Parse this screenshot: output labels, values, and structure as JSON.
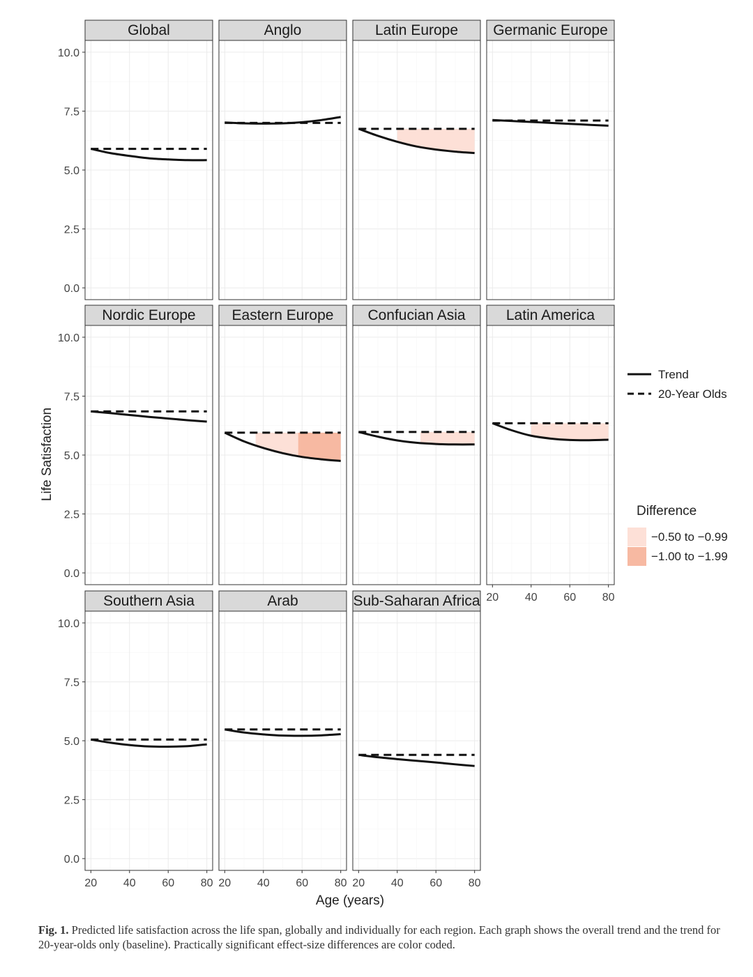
{
  "chart_data": {
    "type": "line",
    "ylabel": "Life Satisfaction",
    "xlabel": "Age (years)",
    "x_ticks": [
      20,
      40,
      60,
      80
    ],
    "y_ticks": [
      "0.0",
      "2.5",
      "5.0",
      "7.5",
      "10.0"
    ],
    "xlim": [
      17,
      83
    ],
    "ylim": [
      -0.5,
      10.5
    ],
    "legend": {
      "lines": [
        {
          "label": "Trend",
          "style": "solid"
        },
        {
          "label": "20-Year Olds",
          "style": "dashed"
        }
      ],
      "difference_title": "Difference",
      "fills": [
        {
          "label": "−0.50 to −0.99",
          "color": "#fde0d7"
        },
        {
          "label": "−1.00 to −1.99",
          "color": "#f7b9a2"
        }
      ]
    },
    "panels": [
      {
        "title": "Global",
        "baseline": 5.9,
        "trend": {
          "x": [
            20,
            30,
            40,
            50,
            60,
            70,
            80
          ],
          "y": [
            5.9,
            5.72,
            5.6,
            5.5,
            5.45,
            5.42,
            5.42
          ]
        },
        "shading": []
      },
      {
        "title": "Anglo",
        "baseline": 7.0,
        "trend": {
          "x": [
            20,
            30,
            40,
            50,
            60,
            70,
            80
          ],
          "y": [
            7.02,
            6.98,
            6.97,
            6.98,
            7.03,
            7.12,
            7.25
          ]
        },
        "shading": []
      },
      {
        "title": "Latin Europe",
        "baseline": 6.75,
        "trend": {
          "x": [
            20,
            30,
            40,
            50,
            60,
            70,
            80
          ],
          "y": [
            6.75,
            6.45,
            6.2,
            6.0,
            5.87,
            5.78,
            5.72
          ]
        },
        "shading": [
          {
            "from": 40,
            "to": 80,
            "level": 0
          }
        ]
      },
      {
        "title": "Germanic Europe",
        "baseline": 7.1,
        "trend": {
          "x": [
            20,
            30,
            40,
            50,
            60,
            70,
            80
          ],
          "y": [
            7.12,
            7.08,
            7.04,
            7.0,
            6.96,
            6.92,
            6.88
          ]
        },
        "shading": []
      },
      {
        "title": "Nordic Europe",
        "baseline": 6.85,
        "trend": {
          "x": [
            20,
            30,
            40,
            50,
            60,
            70,
            80
          ],
          "y": [
            6.85,
            6.78,
            6.7,
            6.62,
            6.55,
            6.48,
            6.42
          ]
        },
        "shading": []
      },
      {
        "title": "Eastern Europe",
        "baseline": 5.95,
        "trend": {
          "x": [
            20,
            30,
            40,
            50,
            60,
            70,
            80
          ],
          "y": [
            5.95,
            5.58,
            5.3,
            5.08,
            4.92,
            4.82,
            4.75
          ]
        },
        "shading": [
          {
            "from": 36,
            "to": 58,
            "level": 0
          },
          {
            "from": 58,
            "to": 80,
            "level": 1
          }
        ]
      },
      {
        "title": "Confucian Asia",
        "baseline": 5.98,
        "trend": {
          "x": [
            20,
            30,
            40,
            50,
            60,
            70,
            80
          ],
          "y": [
            5.98,
            5.78,
            5.62,
            5.52,
            5.47,
            5.45,
            5.45
          ]
        },
        "shading": [
          {
            "from": 52,
            "to": 80,
            "level": 0
          }
        ]
      },
      {
        "title": "Latin America",
        "baseline": 6.35,
        "trend": {
          "x": [
            20,
            30,
            40,
            50,
            60,
            70,
            80
          ],
          "y": [
            6.35,
            6.05,
            5.82,
            5.7,
            5.64,
            5.63,
            5.65
          ]
        },
        "shading": [
          {
            "from": 40,
            "to": 80,
            "level": 0
          }
        ]
      },
      {
        "title": "Southern Asia",
        "baseline": 5.05,
        "trend": {
          "x": [
            20,
            30,
            40,
            50,
            60,
            70,
            80
          ],
          "y": [
            5.05,
            4.92,
            4.82,
            4.76,
            4.75,
            4.77,
            4.85
          ]
        },
        "shading": []
      },
      {
        "title": "Arab",
        "baseline": 5.48,
        "trend": {
          "x": [
            20,
            30,
            40,
            50,
            60,
            70,
            80
          ],
          "y": [
            5.48,
            5.35,
            5.27,
            5.22,
            5.21,
            5.23,
            5.28
          ]
        },
        "shading": []
      },
      {
        "title": "Sub-Saharan Africa",
        "baseline": 4.4,
        "trend": {
          "x": [
            20,
            30,
            40,
            50,
            60,
            70,
            80
          ],
          "y": [
            4.4,
            4.3,
            4.22,
            4.15,
            4.08,
            4.0,
            3.93
          ]
        },
        "shading": []
      }
    ]
  },
  "caption": {
    "label": "Fig. 1.",
    "text": "Predicted life satisfaction across the life span, globally and individually for each region. Each graph shows the overall trend and the trend for 20-year-olds only (baseline). Practically significant effect-size differences are color coded."
  }
}
